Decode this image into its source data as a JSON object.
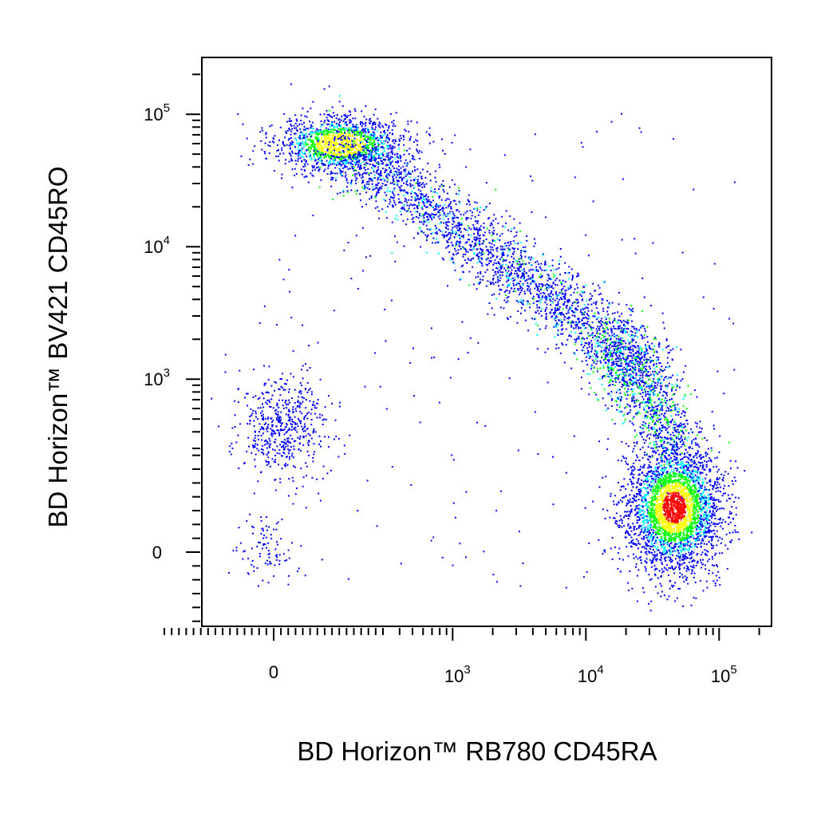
{
  "chart_data": {
    "type": "scatter",
    "subtype": "flow-cytometry-pseudocolor-density",
    "title": "",
    "xlabel": "BD Horizon™ RB780  CD45RA",
    "ylabel": "BD Horizon™  BV421 CD45RO",
    "x_scale": "biexponential",
    "y_scale": "biexponential",
    "xlim": [
      -300,
      200000
    ],
    "ylim": [
      -200,
      200000
    ],
    "grid": false,
    "legend": "none",
    "x_ticks": [
      {
        "value": 0,
        "base": "0",
        "exp": ""
      },
      {
        "value": 1000,
        "base": "10",
        "exp": "3"
      },
      {
        "value": 10000,
        "base": "10",
        "exp": "4"
      },
      {
        "value": 100000,
        "base": "10",
        "exp": "5"
      }
    ],
    "y_ticks": [
      {
        "value": 0,
        "base": "0",
        "exp": ""
      },
      {
        "value": 1000,
        "base": "10",
        "exp": "3"
      },
      {
        "value": 10000,
        "base": "10",
        "exp": "4"
      },
      {
        "value": 100000,
        "base": "10",
        "exp": "5"
      }
    ],
    "density_colors": [
      "#0000ff",
      "#00ffff",
      "#00ff00",
      "#ffff00",
      "#ff0000"
    ],
    "populations": [
      {
        "description": "CD45RO+ CD45RA- memory cluster",
        "x_center": 50,
        "y_center": 60000,
        "density": "high"
      },
      {
        "description": "transitional arc",
        "x_from": 100,
        "y_from": 60000,
        "x_to": 30000,
        "y_to": 2000,
        "density": "medium"
      },
      {
        "description": "CD45RA+ CD45RO- naive cluster",
        "x_center": 60000,
        "y_center": 200,
        "density": "highest"
      },
      {
        "description": "double-negative low cluster",
        "x_center": 0,
        "y_center": 600,
        "density": "low"
      },
      {
        "description": "near-origin sparse events",
        "x_center": -40,
        "y_center": -20,
        "density": "very low"
      }
    ]
  }
}
